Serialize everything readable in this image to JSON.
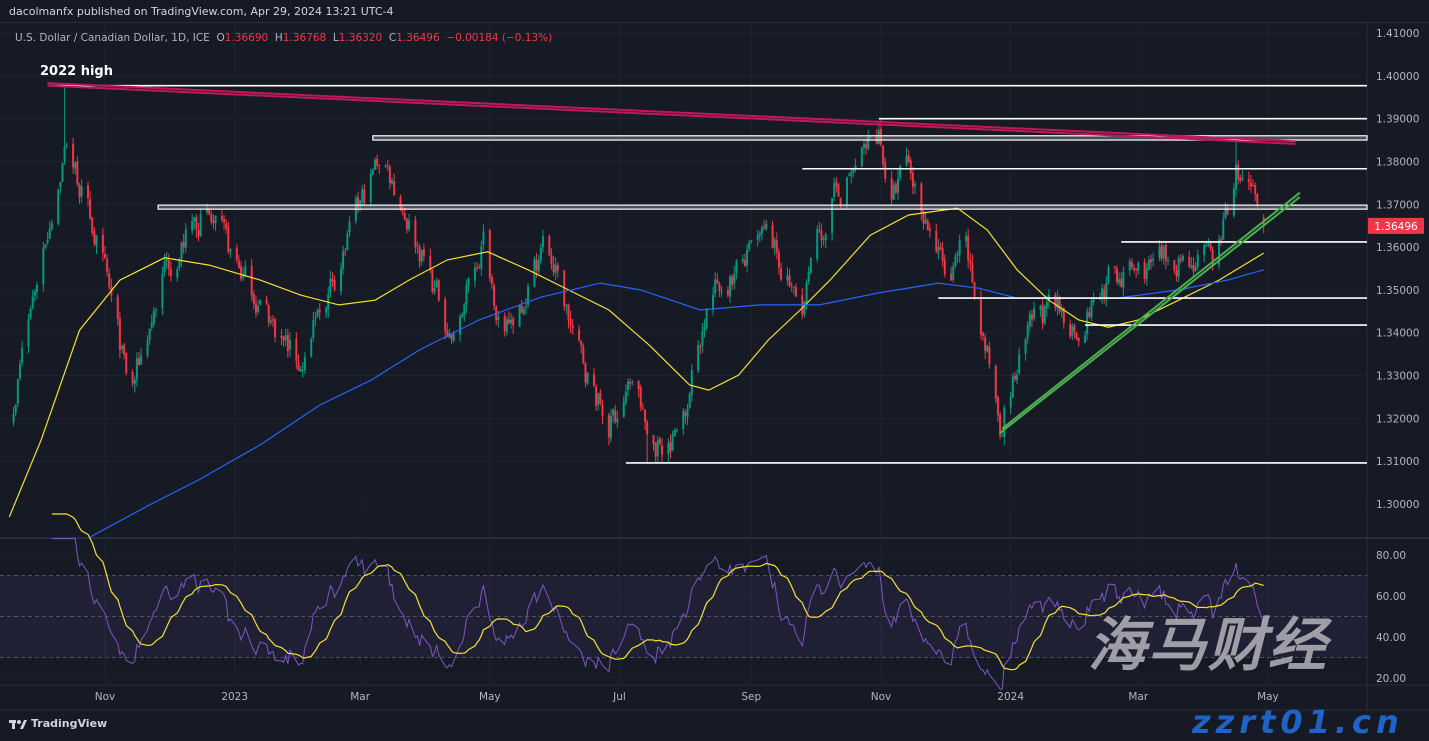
{
  "header": {
    "published": "dacolmanfx published on TradingView.com, Apr 29, 2024 13:21 UTC-4",
    "symbol": "U.S. Dollar / Canadian Dollar, 1D, ICE",
    "o_label": "O",
    "o": "1.36690",
    "h_label": "H",
    "h": "1.36768",
    "l_label": "L",
    "l": "1.36320",
    "c_label": "C",
    "c": "1.36496",
    "change": "−0.00184 (−0.13%)"
  },
  "footer": {
    "logo": "TradingView"
  },
  "watermark": {
    "line1": "海马财经",
    "line2": "zzrt01.cn"
  },
  "colors": {
    "background": "#161a25",
    "up": "#089981",
    "down": "#f23645",
    "ma_fast": "#f5e12c",
    "ma_slow": "#2962ff",
    "rsi": "#7e57c2",
    "rsi_ma": "#f5e12c",
    "trendline_resistance": "#c2185b",
    "trendline_support": "#4caf50",
    "level": "#ffffff",
    "last_price": "#f23645"
  },
  "chart_data": [
    {
      "type": "candlestick",
      "title": "",
      "annotation": "2022 high",
      "last_price_label": "1.36496",
      "y_axis": {
        "range": [
          1.29,
          1.41
        ],
        "ticks": [
          "1.30000",
          "1.31000",
          "1.32000",
          "1.33000",
          "1.34000",
          "1.35000",
          "1.36000",
          "1.37000",
          "1.38000",
          "1.39000",
          "1.40000",
          "1.41000"
        ]
      },
      "x_axis": {
        "ticks": [
          {
            "date": "2022-11-01",
            "label": "Nov"
          },
          {
            "date": "2023-01-01",
            "label": "2023"
          },
          {
            "date": "2023-03-01",
            "label": "Mar"
          },
          {
            "date": "2023-05-01",
            "label": "May"
          },
          {
            "date": "2023-07-01",
            "label": "Jul"
          },
          {
            "date": "2023-09-01",
            "label": "Sep"
          },
          {
            "date": "2023-11-01",
            "label": "Nov"
          },
          {
            "date": "2024-01-01",
            "label": "2024"
          },
          {
            "date": "2024-03-01",
            "label": "Mar"
          },
          {
            "date": "2024-05-01",
            "label": "May"
          }
        ]
      },
      "grid": true,
      "date_range": [
        "2022-09-19",
        "2024-04-29"
      ],
      "price_path_approx": [
        [
          "2022-09-19",
          1.3243
        ],
        [
          "2022-10-02",
          1.358
        ],
        [
          "2022-10-14",
          1.385
        ],
        [
          "2022-10-29",
          1.36
        ],
        [
          "2022-11-13",
          1.325
        ],
        [
          "2022-11-29",
          1.355
        ],
        [
          "2022-12-17",
          1.368
        ],
        [
          "2023-01-03",
          1.355
        ],
        [
          "2023-02-01",
          1.332
        ],
        [
          "2023-02-19",
          1.356
        ],
        [
          "2023-03-11",
          1.382
        ],
        [
          "2023-03-29",
          1.36
        ],
        [
          "2023-04-14",
          1.338
        ],
        [
          "2023-04-28",
          1.362
        ],
        [
          "2023-05-08",
          1.338
        ],
        [
          "2023-05-27",
          1.362
        ],
        [
          "2023-06-12",
          1.335
        ],
        [
          "2023-06-26",
          1.318
        ],
        [
          "2023-07-08",
          1.33
        ],
        [
          "2023-07-15",
          1.313
        ],
        [
          "2023-07-29",
          1.317
        ],
        [
          "2023-08-12",
          1.348
        ],
        [
          "2023-09-09",
          1.362
        ],
        [
          "2023-09-24",
          1.345
        ],
        [
          "2023-10-08",
          1.37
        ],
        [
          "2023-10-31",
          1.387
        ],
        [
          "2023-11-06",
          1.37
        ],
        [
          "2023-11-13",
          1.38
        ],
        [
          "2023-11-24",
          1.365
        ],
        [
          "2023-12-03",
          1.35
        ],
        [
          "2023-12-10",
          1.36
        ],
        [
          "2023-12-27",
          1.32
        ],
        [
          "2024-01-14",
          1.345
        ],
        [
          "2024-02-02",
          1.342
        ],
        [
          "2024-02-16",
          1.352
        ],
        [
          "2024-03-07",
          1.355
        ],
        [
          "2024-03-20",
          1.358
        ],
        [
          "2024-04-06",
          1.356
        ],
        [
          "2024-04-16",
          1.378
        ],
        [
          "2024-04-29",
          1.365
        ]
      ],
      "extremes": {
        "high_2022": {
          "date": "2022-10-13",
          "price": 1.3977
        },
        "low": {
          "date": "2023-07-14",
          "price": 1.3093
        },
        "high_2023": {
          "date": "2023-11-01",
          "price": 1.3898
        },
        "high_2024": {
          "date": "2024-04-16",
          "price": 1.3846
        }
      },
      "last_bar": {
        "open": 1.3669,
        "high": 1.36768,
        "low": 1.3632,
        "close": 1.36496
      },
      "moving_averages": [
        {
          "role": "fast",
          "points": [
            [
              "2022-09-17",
              1.297
            ],
            [
              "2022-10-02",
              1.315
            ],
            [
              "2022-10-20",
              1.3406
            ],
            [
              "2022-11-08",
              1.3523
            ],
            [
              "2022-11-29",
              1.3575
            ],
            [
              "2022-12-20",
              1.3558
            ],
            [
              "2023-01-13",
              1.3523
            ],
            [
              "2023-02-01",
              1.3488
            ],
            [
              "2023-02-19",
              1.3465
            ],
            [
              "2023-03-08",
              1.3476
            ],
            [
              "2023-03-24",
              1.3523
            ],
            [
              "2023-04-11",
              1.357
            ],
            [
              "2023-04-30",
              1.3589
            ],
            [
              "2023-05-19",
              1.3547
            ],
            [
              "2023-06-07",
              1.35
            ],
            [
              "2023-06-26",
              1.3453
            ],
            [
              "2023-07-15",
              1.3371
            ],
            [
              "2023-08-03",
              1.3278
            ],
            [
              "2023-08-12",
              1.3266
            ],
            [
              "2023-08-26",
              1.3301
            ],
            [
              "2023-09-09",
              1.3383
            ],
            [
              "2023-09-24",
              1.3453
            ],
            [
              "2023-10-08",
              1.3523
            ],
            [
              "2023-10-27",
              1.3628
            ],
            [
              "2023-11-14",
              1.3675
            ],
            [
              "2023-12-07",
              1.3691
            ],
            [
              "2023-12-21",
              1.364
            ],
            [
              "2024-01-04",
              1.3547
            ],
            [
              "2024-01-19",
              1.3476
            ],
            [
              "2024-02-02",
              1.343
            ],
            [
              "2024-02-16",
              1.3413
            ],
            [
              "2024-03-01",
              1.343
            ],
            [
              "2024-03-20",
              1.3476
            ],
            [
              "2024-04-08",
              1.3523
            ],
            [
              "2024-04-22",
              1.3565
            ],
            [
              "2024-04-29",
              1.3586
            ]
          ]
        },
        {
          "role": "slow",
          "points": [
            [
              "2022-10-25",
              1.2923
            ],
            [
              "2022-11-22",
              1.2998
            ],
            [
              "2022-12-15",
              1.3056
            ],
            [
              "2023-01-13",
              1.3138
            ],
            [
              "2023-02-10",
              1.3231
            ],
            [
              "2023-03-06",
              1.3289
            ],
            [
              "2023-03-29",
              1.336
            ],
            [
              "2023-04-26",
              1.343
            ],
            [
              "2023-05-25",
              1.3483
            ],
            [
              "2023-06-22",
              1.3516
            ],
            [
              "2023-07-11",
              1.35
            ],
            [
              "2023-08-08",
              1.3453
            ],
            [
              "2023-09-05",
              1.3465
            ],
            [
              "2023-10-03",
              1.3465
            ],
            [
              "2023-10-31",
              1.3493
            ],
            [
              "2023-11-28",
              1.3516
            ],
            [
              "2023-12-17",
              1.3504
            ],
            [
              "2024-01-04",
              1.3481
            ],
            [
              "2024-01-28",
              1.3481
            ],
            [
              "2024-02-20",
              1.3481
            ],
            [
              "2024-03-20",
              1.35
            ],
            [
              "2024-04-12",
              1.3523
            ],
            [
              "2024-04-29",
              1.3547
            ]
          ]
        }
      ],
      "horizontal_levels": [
        {
          "price": 1.3977,
          "from": "2022-10-05"
        },
        {
          "price": 1.39,
          "from": "2023-10-31"
        },
        {
          "price_band": [
            1.385,
            1.386
          ],
          "from": "2023-03-07"
        },
        {
          "price": 1.3783,
          "from": "2023-09-25"
        },
        {
          "price_band": [
            1.3689,
            1.3698
          ],
          "from": "2022-11-26"
        },
        {
          "price": 1.3612,
          "from": "2024-02-22"
        },
        {
          "price": 1.3481,
          "from": "2023-11-28"
        },
        {
          "price": 1.3418,
          "from": "2024-02-05"
        },
        {
          "price": 1.3096,
          "from": "2023-07-04"
        }
      ],
      "trendlines": [
        {
          "role": "resistance",
          "from": [
            "2022-10-05",
            1.3983
          ],
          "to": [
            "2024-05-14",
            1.3847
          ]
        },
        {
          "role": "resistance",
          "from": [
            "2022-10-05",
            1.3977
          ],
          "to": [
            "2024-05-14",
            1.3841
          ]
        },
        {
          "role": "support",
          "from": [
            "2023-12-27",
            1.3166
          ],
          "to": [
            "2024-05-16",
            1.3717
          ]
        },
        {
          "role": "support",
          "from": [
            "2023-12-28",
            1.3176
          ],
          "to": [
            "2024-05-16",
            1.3727
          ]
        }
      ]
    },
    {
      "type": "line",
      "title": "",
      "y_axis": {
        "range": [
          10,
          90
        ],
        "ticks": [
          "20.00",
          "40.00",
          "60.00",
          "80.00"
        ]
      },
      "bands": {
        "upper": 70,
        "middle": 50,
        "lower": 30
      },
      "series_note_values": {
        "rsi_last": 51,
        "rsi_ma_last": 62
      }
    }
  ]
}
